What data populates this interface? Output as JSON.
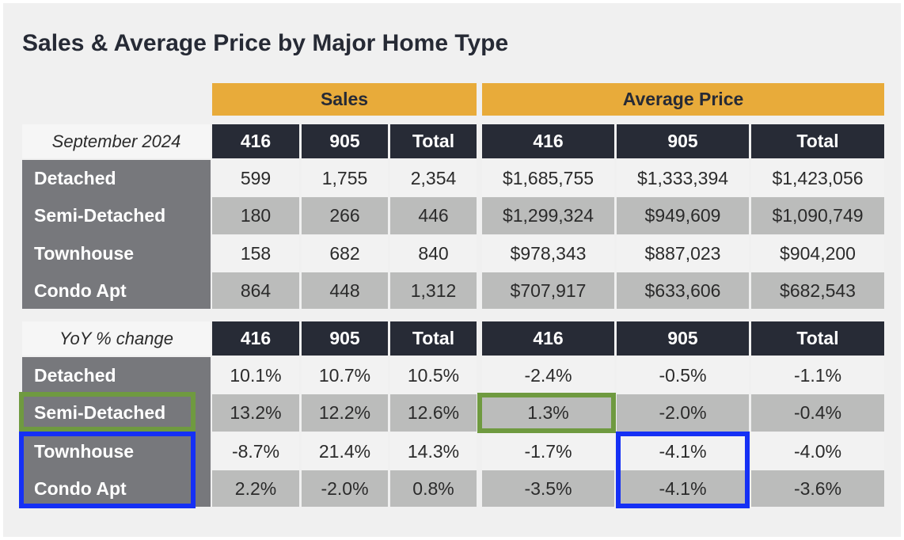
{
  "title": "Sales & Average Price by Major Home Type",
  "group_headers": [
    "Sales",
    "Average Price"
  ],
  "column_headers": [
    "416",
    "905",
    "Total",
    "416",
    "905",
    "Total"
  ],
  "sections": [
    {
      "label": "September 2024",
      "rows": [
        {
          "type": "Detached",
          "values": [
            "599",
            "1,755",
            "2,354",
            "$1,685,755",
            "$1,333,394",
            "$1,423,056"
          ]
        },
        {
          "type": "Semi-Detached",
          "values": [
            "180",
            "266",
            "446",
            "$1,299,324",
            "$949,609",
            "$1,090,749"
          ]
        },
        {
          "type": "Townhouse",
          "values": [
            "158",
            "682",
            "840",
            "$978,343",
            "$887,023",
            "$904,200"
          ]
        },
        {
          "type": "Condo Apt",
          "values": [
            "864",
            "448",
            "1,312",
            "$707,917",
            "$633,606",
            "$682,543"
          ]
        }
      ]
    },
    {
      "label": "YoY % change",
      "rows": [
        {
          "type": "Detached",
          "values": [
            "10.1%",
            "10.7%",
            "10.5%",
            "-2.4%",
            "-0.5%",
            "-1.1%"
          ]
        },
        {
          "type": "Semi-Detached",
          "values": [
            "13.2%",
            "12.2%",
            "12.6%",
            "1.3%",
            "-2.0%",
            "-0.4%"
          ]
        },
        {
          "type": "Townhouse",
          "values": [
            "-8.7%",
            "21.4%",
            "14.3%",
            "-1.7%",
            "-4.1%",
            "-4.0%"
          ]
        },
        {
          "type": "Condo Apt",
          "values": [
            "2.2%",
            "-2.0%",
            "0.8%",
            "-3.5%",
            "-4.1%",
            "-3.6%"
          ]
        }
      ]
    }
  ],
  "highlights": {
    "green": "#6f9a40",
    "blue": "#1530f5"
  },
  "colors": {
    "gold": "#e8ab3a",
    "dark": "#272b36",
    "row_label": "#77787c",
    "alt_row": "#bbbcbb"
  }
}
